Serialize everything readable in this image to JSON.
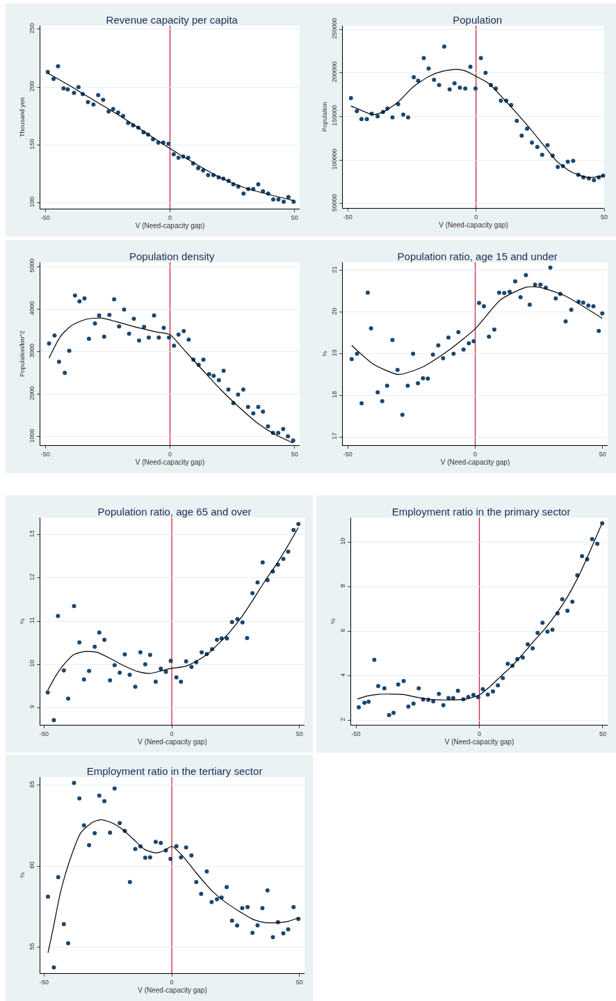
{
  "chart_data": [
    {
      "type": "scatter",
      "title": "Revenue capacity per capita",
      "xlabel": "V (Need-capacity gap)",
      "ylabel": "Thousand yen",
      "xlim": [
        -52,
        52
      ],
      "xticks": [
        -50,
        0,
        50
      ],
      "ylim": [
        95,
        253
      ],
      "yticks": [
        100,
        150,
        200,
        250
      ],
      "grid": "y",
      "marker": "circle",
      "ref_lines": [
        {
          "axis": "x",
          "value": 0,
          "color": "#c8203c"
        }
      ],
      "series": [
        {
          "type": "scatter",
          "color": "#1a476f",
          "x": [
            -49,
            -46.7,
            -44.9,
            -42.7,
            -41,
            -38.5,
            -36.7,
            -35,
            -32.9,
            -30.7,
            -28.8,
            -26.8,
            -24.6,
            -22.8,
            -20.8,
            -18.8,
            -16.8,
            -14.8,
            -12.7,
            -10.6,
            -8.8,
            -6.8,
            -4.7,
            -2.7,
            -0.6,
            1.5,
            3.4,
            5.3,
            7.3,
            9.3,
            11.3,
            13.3,
            15.3,
            17.4,
            19.5,
            21.4,
            23.5,
            25.4,
            27.4,
            29.5,
            31.4,
            33.4,
            35.4,
            37.3,
            39.4,
            41.4,
            43.5,
            45.6,
            47.5,
            49.6
          ],
          "values": [
            213,
            207,
            218,
            199,
            198,
            195,
            200,
            194,
            187,
            185,
            193,
            189,
            179,
            181,
            178,
            175,
            169,
            167,
            165,
            161,
            159,
            155,
            152,
            152,
            151,
            142,
            139,
            140,
            139,
            134,
            130,
            128,
            124,
            124,
            122,
            121,
            119,
            116,
            114,
            108,
            112,
            112,
            116,
            110,
            108,
            103,
            103,
            101,
            105,
            101
          ]
        },
        {
          "type": "line",
          "marker": "none",
          "color": "#000000",
          "x": [
            -49,
            -40,
            -30,
            -20,
            -10,
            0,
            10,
            20,
            30,
            40,
            49.6
          ],
          "values": [
            212,
            201,
            188,
            175,
            161,
            147,
            134,
            122,
            113,
            107,
            102
          ]
        }
      ]
    },
    {
      "type": "scatter",
      "title": "Population",
      "xlabel": "V (Need-capacity gap)",
      "ylabel": "Population",
      "xlim": [
        -52,
        50
      ],
      "xticks": [
        -50,
        0,
        50
      ],
      "ylim": [
        45000,
        254000
      ],
      "yticks": [
        50000,
        100000,
        150000,
        200000,
        250000
      ],
      "grid": "y",
      "marker": "circle",
      "ref_lines": [
        {
          "axis": "x",
          "value": 0,
          "color": "#c8203c"
        }
      ],
      "series": [
        {
          "type": "scatter",
          "color": "#1a476f",
          "x": [
            -48.8,
            -46.5,
            -44.7,
            -42.6,
            -40.7,
            -38.4,
            -36.3,
            -34.6,
            -32.6,
            -30.4,
            -28.4,
            -26.5,
            -24.3,
            -22.6,
            -20.4,
            -18.5,
            -16.4,
            -14.4,
            -12.4,
            -10.3,
            -8.4,
            -6.3,
            -4.2,
            -2.2,
            -0.2,
            1.9,
            3.7,
            5.8,
            7.7,
            9.7,
            11.8,
            13.7,
            15.9,
            17.8,
            19.9,
            21.8,
            23.9,
            25.8,
            27.9,
            29.9,
            31.9,
            33.9,
            35.8,
            37.9,
            39.9,
            41.9,
            44,
            46,
            47.9,
            49.6
          ],
          "values": [
            171000,
            156000,
            147000,
            147000,
            153000,
            150000,
            155000,
            159000,
            149000,
            164000,
            152000,
            149000,
            195000,
            191000,
            217000,
            205000,
            192000,
            186000,
            230000,
            181000,
            188000,
            183000,
            182000,
            207000,
            182000,
            217000,
            200000,
            186000,
            182000,
            168000,
            168000,
            163000,
            145000,
            128000,
            136000,
            120000,
            115000,
            106000,
            117000,
            105000,
            92000,
            93000,
            98000,
            99000,
            83000,
            80000,
            79000,
            77000,
            80000,
            82000
          ]
        },
        {
          "type": "line",
          "marker": "none",
          "color": "#000000",
          "x": [
            -48.8,
            -44,
            -40.4,
            -36.3,
            -30.6,
            -24.5,
            -18.3,
            -12.8,
            -7.5,
            -4,
            0,
            4.9,
            10.2,
            15.5,
            20.8,
            26.1,
            31.4,
            36.7,
            42,
            45.5,
            49.6
          ],
          "values": [
            162000,
            156000,
            152000,
            155000,
            166000,
            184000,
            196000,
            202000,
            204000,
            202000,
            196000,
            188000,
            172000,
            155000,
            137000,
            118000,
            99000,
            87000,
            81000,
            80000,
            82000
          ]
        }
      ]
    },
    {
      "type": "scatter",
      "title": "Population density",
      "xlabel": "V (Need-capacity gap)",
      "ylabel": "Population/km^2",
      "xlim": [
        -52,
        52
      ],
      "xticks": [
        -50,
        0,
        50
      ],
      "ylim": [
        800,
        5100
      ],
      "yticks": [
        1000,
        2000,
        3000,
        4000,
        5000
      ],
      "grid": "y",
      "marker": "circle",
      "ref_lines": [
        {
          "axis": "x",
          "value": 0,
          "color": "#c8203c"
        }
      ],
      "series": [
        {
          "type": "scatter",
          "color": "#1a476f",
          "x": [
            -48.5,
            -46.3,
            -44.5,
            -42.2,
            -40.4,
            -38.1,
            -36.3,
            -34.3,
            -32.5,
            -30.1,
            -28.4,
            -26.4,
            -24.3,
            -22.4,
            -20.4,
            -18.4,
            -16.4,
            -14.5,
            -12.4,
            -10.4,
            -8.5,
            -6.4,
            -4.5,
            -2.5,
            -0.4,
            1.6,
            3.4,
            5.5,
            7.5,
            9.4,
            11.5,
            13.4,
            15.7,
            17.5,
            19.6,
            21.5,
            23.4,
            25.4,
            27.3,
            29.4,
            31.3,
            33.4,
            35.4,
            37.3,
            39.3,
            41.3,
            43.4,
            45.4,
            47.3,
            49.4
          ],
          "values": [
            3190,
            3380,
            2760,
            2500,
            3020,
            4320,
            4180,
            4250,
            3300,
            3660,
            3850,
            3350,
            3860,
            4230,
            3590,
            3990,
            3420,
            3770,
            3260,
            3580,
            3330,
            3850,
            3330,
            3560,
            3330,
            3140,
            3400,
            3480,
            3280,
            2810,
            2690,
            2810,
            2470,
            2430,
            2330,
            2550,
            2110,
            1790,
            1990,
            2110,
            1700,
            1550,
            1700,
            1590,
            1240,
            1090,
            1090,
            1180,
            1010,
            910
          ]
        },
        {
          "type": "line",
          "marker": "none",
          "color": "#000000",
          "x": [
            -48.5,
            -44,
            -39.6,
            -33.6,
            -27.6,
            -20.1,
            -12.7,
            -5.2,
            0,
            5.2,
            12.7,
            20.1,
            27.6,
            35.1,
            42.5,
            49.4
          ],
          "values": [
            2850,
            3350,
            3610,
            3760,
            3790,
            3680,
            3560,
            3460,
            3400,
            3070,
            2590,
            2120,
            1700,
            1320,
            1040,
            850
          ]
        }
      ]
    },
    {
      "type": "scatter",
      "title": "Population ratio, age 15 and under",
      "xlabel": "V (Need-capacity gap)",
      "ylabel": "%",
      "xlim": [
        -52,
        52
      ],
      "xticks": [
        -50,
        0,
        50
      ],
      "ylim": [
        16.8,
        21.2
      ],
      "yticks": [
        17,
        18,
        19,
        20,
        21
      ],
      "grid": "y",
      "marker": "circle",
      "ref_lines": [
        {
          "axis": "x",
          "value": 0,
          "color": "#c8203c"
        }
      ],
      "series": [
        {
          "type": "scatter",
          "color": "#1a476f",
          "x": [
            -48.5,
            -46.4,
            -44.6,
            -42.2,
            -40.9,
            -38.3,
            -36.5,
            -34.6,
            -32.5,
            -30.5,
            -28.6,
            -26.5,
            -24.4,
            -22.5,
            -20.5,
            -18.6,
            -16.6,
            -14.5,
            -12.6,
            -10.5,
            -8.5,
            -6.6,
            -4.6,
            -2.5,
            -0.6,
            1.5,
            3.4,
            5.4,
            7.5,
            9.4,
            11.4,
            13.5,
            15.7,
            17.8,
            19.9,
            21.4,
            23.5,
            25.6,
            27.7,
            29.5,
            31.6,
            33.4,
            35.5,
            37.7,
            40.6,
            42.4,
            44.4,
            46.4,
            48.5,
            49.9
          ],
          "values": [
            18.87,
            19.0,
            17.81,
            20.47,
            19.61,
            18.07,
            17.86,
            18.23,
            19.33,
            18.61,
            17.53,
            18.23,
            19.0,
            18.29,
            18.41,
            18.4,
            18.98,
            19.2,
            18.89,
            19.39,
            19.0,
            19.52,
            19.1,
            19.25,
            19.3,
            20.22,
            20.14,
            19.41,
            19.58,
            20.47,
            20.46,
            20.49,
            20.74,
            20.36,
            20.89,
            20.18,
            20.66,
            20.66,
            20.59,
            21.07,
            20.33,
            20.44,
            19.78,
            20.06,
            20.25,
            20.23,
            20.16,
            20.14,
            19.55,
            19.97
          ]
        },
        {
          "type": "line",
          "marker": "none",
          "color": "#000000",
          "x": [
            -48.5,
            -40,
            -30,
            -20,
            -10,
            0,
            10,
            20,
            25,
            35,
            49.9
          ],
          "values": [
            19.2,
            18.75,
            18.5,
            18.7,
            19.1,
            19.6,
            20.3,
            20.6,
            20.6,
            20.4,
            19.85
          ]
        }
      ]
    },
    {
      "type": "scatter",
      "title": "Population ratio, age 65 and over",
      "xlabel": "V (Need-capacity gap)",
      "ylabel": "%",
      "xlim": [
        -51.5,
        52
      ],
      "xticks": [
        -50,
        0,
        50
      ],
      "ylim": [
        8.6,
        13.4
      ],
      "yticks": [
        9,
        10,
        11,
        12,
        13
      ],
      "grid": "y",
      "marker": "circle",
      "ref_lines": [
        {
          "axis": "x",
          "value": 0,
          "color": "#c8203c"
        }
      ],
      "series": [
        {
          "type": "scatter",
          "color": "#1a476f",
          "x": [
            -48.6,
            -46.2,
            -44.6,
            -42.3,
            -40.6,
            -38.3,
            -36.2,
            -34.4,
            -32.4,
            -30.2,
            -28.4,
            -26.4,
            -24.2,
            -22.4,
            -20.4,
            -18.4,
            -16.5,
            -14.3,
            -12.3,
            -10.4,
            -8.5,
            -6.3,
            -4.3,
            -2.3,
            -0.4,
            1.8,
            3.6,
            5.6,
            7.7,
            9.6,
            11.7,
            13.7,
            15.8,
            17.7,
            19.5,
            21.6,
            23.6,
            25.7,
            27.7,
            29.5,
            31.6,
            33.6,
            35.6,
            37.5,
            39.6,
            41.6,
            43.7,
            45.6,
            47.7,
            49.6
          ],
          "values": [
            9.35,
            8.71,
            11.12,
            9.86,
            9.21,
            11.35,
            10.51,
            9.65,
            9.85,
            10.41,
            10.74,
            10.57,
            9.63,
            9.98,
            9.81,
            10.23,
            9.76,
            9.48,
            10.28,
            10.0,
            10.22,
            9.6,
            9.9,
            9.83,
            10.08,
            9.7,
            9.6,
            10.07,
            9.94,
            10.05,
            10.28,
            10.24,
            10.35,
            10.57,
            10.6,
            10.6,
            10.98,
            11.05,
            10.97,
            10.61,
            11.65,
            11.9,
            12.36,
            11.95,
            12.15,
            12.31,
            12.44,
            12.61,
            13.11,
            13.25
          ]
        },
        {
          "type": "line",
          "marker": "none",
          "color": "#000000",
          "x": [
            -48.6,
            -45.5,
            -42.8,
            -38.3,
            -33.8,
            -29.3,
            -23.9,
            -18.5,
            -13.1,
            -8.6,
            -4.1,
            0,
            5,
            9.5,
            14,
            18.5,
            23,
            27.5,
            32,
            36.5,
            41,
            45.5,
            49.6
          ],
          "values": [
            9.4,
            9.73,
            9.96,
            10.23,
            10.3,
            10.28,
            10.13,
            9.96,
            9.83,
            9.79,
            9.85,
            9.91,
            9.95,
            10.07,
            10.24,
            10.49,
            10.77,
            11.11,
            11.51,
            11.93,
            12.32,
            12.75,
            13.17
          ]
        }
      ]
    },
    {
      "type": "scatter",
      "title": "Employment ratio in the primary sector",
      "xlabel": "V (Need-capacity gap)",
      "ylabel": "%",
      "xlim": [
        -52,
        52
      ],
      "xticks": [
        -50,
        0,
        50
      ],
      "ylim": [
        1.8,
        11.1
      ],
      "yticks": [
        2,
        4,
        6,
        8,
        10
      ],
      "grid": "y",
      "marker": "circle",
      "ref_lines": [
        {
          "axis": "x",
          "value": 0,
          "color": "#c8203c"
        }
      ],
      "series": [
        {
          "type": "scatter",
          "color": "#1a476f",
          "x": [
            -48.9,
            -46.6,
            -44.9,
            -42.6,
            -41,
            -38.5,
            -36.6,
            -34.8,
            -32.9,
            -30.7,
            -28.8,
            -26.7,
            -24.6,
            -22.8,
            -20.7,
            -18.7,
            -16.4,
            -14.6,
            -12.5,
            -10.6,
            -8.7,
            -6.5,
            -4.5,
            -2.4,
            -0.5,
            1.4,
            3.4,
            5.5,
            7.5,
            9.5,
            11.5,
            13.4,
            15.4,
            17.6,
            19.6,
            21.6,
            23.6,
            25.6,
            27.6,
            29.6,
            31.7,
            33.6,
            35.7,
            37.7,
            39.7,
            41.6,
            43.7,
            45.7,
            47.8,
            49.8
          ],
          "values": [
            2.59,
            2.79,
            2.84,
            4.72,
            3.54,
            3.44,
            2.24,
            2.34,
            3.61,
            3.77,
            2.62,
            2.75,
            3.44,
            2.94,
            2.92,
            2.85,
            3.19,
            2.68,
            3.0,
            3.0,
            3.33,
            2.95,
            3.05,
            3.14,
            3.04,
            3.4,
            3.16,
            3.3,
            3.57,
            3.9,
            4.54,
            4.45,
            4.75,
            4.82,
            5.41,
            5.23,
            5.93,
            6.38,
            5.98,
            6.07,
            6.8,
            7.43,
            6.92,
            7.32,
            8.51,
            9.37,
            9.23,
            10.13,
            9.92,
            10.84
          ]
        },
        {
          "type": "line",
          "marker": "none",
          "color": "#000000",
          "x": [
            -49.4,
            -45.3,
            -40.8,
            -35.4,
            -30.8,
            -26.3,
            -21.8,
            -16.4,
            -11,
            -5.6,
            0,
            4.3,
            8.8,
            13.3,
            17.8,
            22.3,
            26.8,
            31.3,
            35.8,
            40.3,
            44.8,
            49.5
          ],
          "values": [
            2.96,
            3.1,
            3.17,
            3.18,
            3.16,
            3.06,
            2.97,
            2.92,
            2.92,
            2.95,
            3.14,
            3.52,
            3.99,
            4.45,
            5.0,
            5.58,
            6.14,
            6.8,
            7.56,
            8.49,
            9.58,
            10.79
          ]
        }
      ]
    },
    {
      "type": "scatter",
      "title": "Employment ratio in the tertiary sector",
      "xlabel": "V (Need-capacity gap)",
      "ylabel": "%",
      "xlim": [
        -51.5,
        52
      ],
      "xticks": [
        -50,
        0,
        50
      ],
      "ylim": [
        53.4,
        65.5
      ],
      "yticks": [
        55,
        60,
        65
      ],
      "grid": "y",
      "marker": "circle",
      "ref_lines": [
        {
          "axis": "x",
          "value": 0,
          "color": "#c8203c"
        }
      ],
      "series": [
        {
          "type": "scatter",
          "color": "#1a476f",
          "x": [
            -48.5,
            -46.2,
            -44.5,
            -42.3,
            -40.6,
            -38.3,
            -36.2,
            -34.4,
            -32.4,
            -30.2,
            -28.4,
            -26.4,
            -24.2,
            -22.4,
            -20.4,
            -18.4,
            -16.4,
            -14.3,
            -12.3,
            -10.4,
            -8.5,
            -6.3,
            -4.3,
            -2.3,
            -0.5,
            1.8,
            3.6,
            5.6,
            7.7,
            9.6,
            11.5,
            13.7,
            15.6,
            17.7,
            19.5,
            21.5,
            23.6,
            25.6,
            27.6,
            29.7,
            31.6,
            33.6,
            35.5,
            37.5,
            39.6,
            41.6,
            43.7,
            45.6,
            47.7,
            49.6
          ],
          "values": [
            58.12,
            53.75,
            59.32,
            56.42,
            55.25,
            65.13,
            64.18,
            62.52,
            61.29,
            62.04,
            64.35,
            64.01,
            62.07,
            64.79,
            62.66,
            62.17,
            59.02,
            61.06,
            61.22,
            60.52,
            60.54,
            61.5,
            61.43,
            60.97,
            60.45,
            61.23,
            60.54,
            61.16,
            60.66,
            59.02,
            58.29,
            59.67,
            57.79,
            57.96,
            58.07,
            58.71,
            56.64,
            56.34,
            57.41,
            57.48,
            55.89,
            56.35,
            57.41,
            58.51,
            55.62,
            56.54,
            55.86,
            56.1,
            57.48,
            56.75
          ]
        },
        {
          "type": "line",
          "marker": "none",
          "color": "#000000",
          "x": [
            -48.5,
            -46.4,
            -43.7,
            -40.1,
            -35.6,
            -31.1,
            -27.9,
            -23.9,
            -19.4,
            -14.9,
            -10.4,
            -6.3,
            -3.2,
            0,
            4.1,
            9.5,
            15.8,
            21.2,
            26.6,
            32,
            36.5,
            41.9,
            45.5,
            49.6
          ],
          "values": [
            54.66,
            56.21,
            58.33,
            60.3,
            62.07,
            62.7,
            62.87,
            62.7,
            62.28,
            61.64,
            61.01,
            60.82,
            60.94,
            61.22,
            60.66,
            59.6,
            58.47,
            57.76,
            57.2,
            56.71,
            56.52,
            56.52,
            56.59,
            56.81
          ]
        }
      ]
    }
  ]
}
